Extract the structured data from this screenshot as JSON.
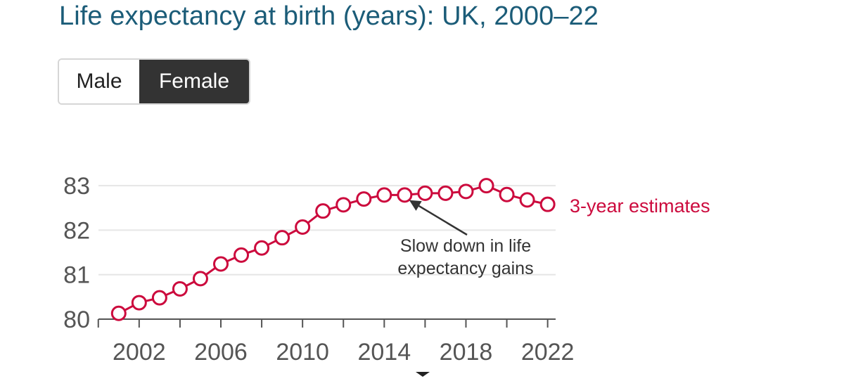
{
  "page": {
    "title": "Life expectancy at birth (years): UK, 2000–22"
  },
  "toggle": {
    "options": [
      {
        "label": "Male",
        "selected": false
      },
      {
        "label": "Female",
        "selected": true
      }
    ]
  },
  "colors": {
    "series": "#cc0a3d",
    "title": "#1b5c78",
    "toggle_active_bg": "#333333"
  },
  "chart_data": {
    "type": "line",
    "title": "",
    "xlabel": "",
    "ylabel": "",
    "ylim": [
      80,
      83
    ],
    "xlim": [
      2000,
      2022
    ],
    "yticks": [
      80,
      81,
      82,
      83
    ],
    "xticks_labeled": [
      2002,
      2006,
      2010,
      2014,
      2018,
      2022
    ],
    "grid": true,
    "x": [
      2001,
      2002,
      2003,
      2004,
      2005,
      2006,
      2007,
      2008,
      2009,
      2010,
      2011,
      2012,
      2013,
      2014,
      2015,
      2016,
      2017,
      2018,
      2019,
      2020,
      2021,
      2022
    ],
    "series": [
      {
        "name": "3-year estimates",
        "values": [
          80.13,
          80.37,
          80.48,
          80.68,
          80.91,
          81.24,
          81.44,
          81.6,
          81.83,
          82.07,
          82.43,
          82.57,
          82.7,
          82.79,
          82.79,
          82.83,
          82.83,
          82.87,
          83.0,
          82.8,
          82.68,
          82.58
        ]
      }
    ],
    "annotations": [
      {
        "lines": [
          "Slow down in life",
          "expectancy gains"
        ],
        "points_to": {
          "x": 2015.5,
          "y": 82.8
        }
      }
    ]
  }
}
